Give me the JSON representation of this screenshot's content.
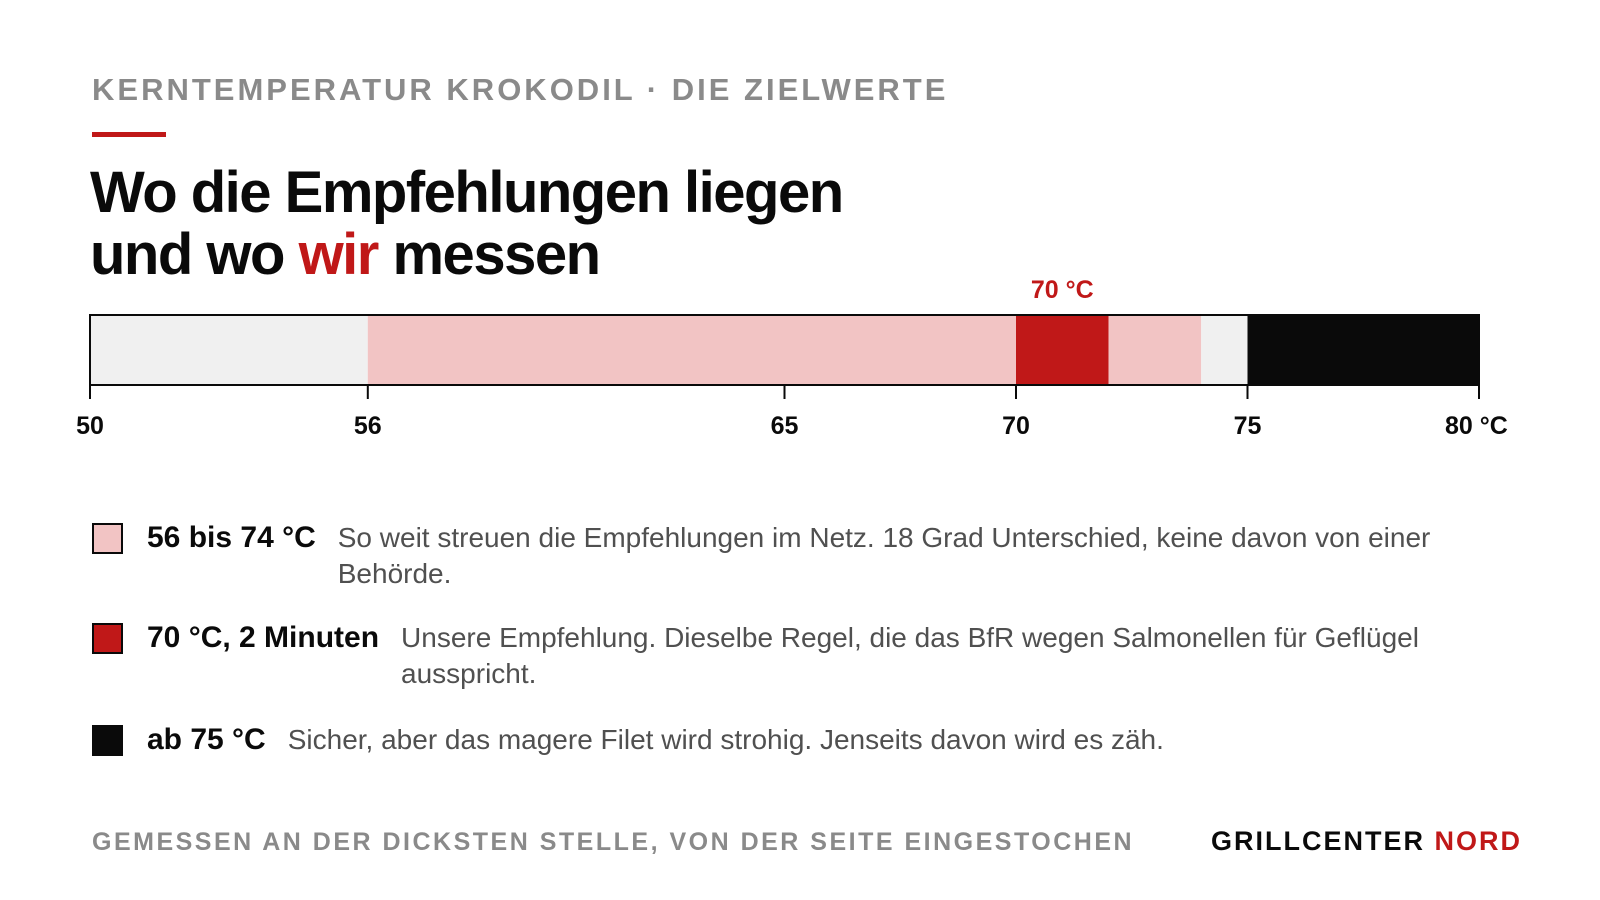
{
  "header": {
    "kicker": "KERNTEMPERATUR KROKODIL · DIE ZIELWERTE",
    "headline_line1": "Wo die Empfehlungen liegen",
    "headline_line2_before": "und wo ",
    "headline_line2_accent": "wir",
    "headline_line2_after": " messen"
  },
  "colors": {
    "accent": "#c01818",
    "light_pink": "#f2c4c4",
    "light_gray": "#f0f0f0",
    "black": "#0a0a0a",
    "gray_text": "#8a8a8a"
  },
  "chart_data": {
    "type": "bar",
    "orientation": "horizontal",
    "xlim": [
      50,
      80
    ],
    "unit": "°C",
    "segments": [
      {
        "from": 50,
        "to": 56,
        "color": "#f0f0f0"
      },
      {
        "from": 56,
        "to": 70,
        "color": "#f2c4c4"
      },
      {
        "from": 70,
        "to": 72,
        "color": "#c01818"
      },
      {
        "from": 72,
        "to": 74,
        "color": "#f2c4c4"
      },
      {
        "from": 74,
        "to": 75,
        "color": "#f0f0f0"
      },
      {
        "from": 75,
        "to": 80,
        "color": "#0a0a0a"
      }
    ],
    "ticks": [
      {
        "value": 50,
        "label": "50"
      },
      {
        "value": 56,
        "label": "56"
      },
      {
        "value": 65,
        "label": "65"
      },
      {
        "value": 70,
        "label": "70"
      },
      {
        "value": 75,
        "label": "75"
      },
      {
        "value": 80,
        "label": "80 °C"
      }
    ],
    "annotation": {
      "from": 70,
      "to": 72,
      "label": "70 °C",
      "color": "#c01818"
    },
    "legend": [
      {
        "label": "56 bis 74 °C",
        "description": "So weit streuen die Empfehlungen im Netz. 18 Grad Unterschied, keine davon von einer Behörde.",
        "color": "#f2c4c4"
      },
      {
        "label": "70 °C, 2 Minuten",
        "description": "Unsere Empfehlung. Dieselbe Regel, die das BfR wegen Salmonellen für Geflügel ausspricht.",
        "color": "#c01818"
      },
      {
        "label": "ab 75 °C",
        "description": "Sicher, aber das magere Filet wird strohig. Jenseits davon wird es zäh.",
        "color": "#0a0a0a"
      }
    ]
  },
  "footer": {
    "note": "GEMESSEN AN DER DICKSTEN STELLE, VON DER SEITE EINGESTOCHEN",
    "brand_main": "GRILLCENTER ",
    "brand_accent": "NORD"
  }
}
